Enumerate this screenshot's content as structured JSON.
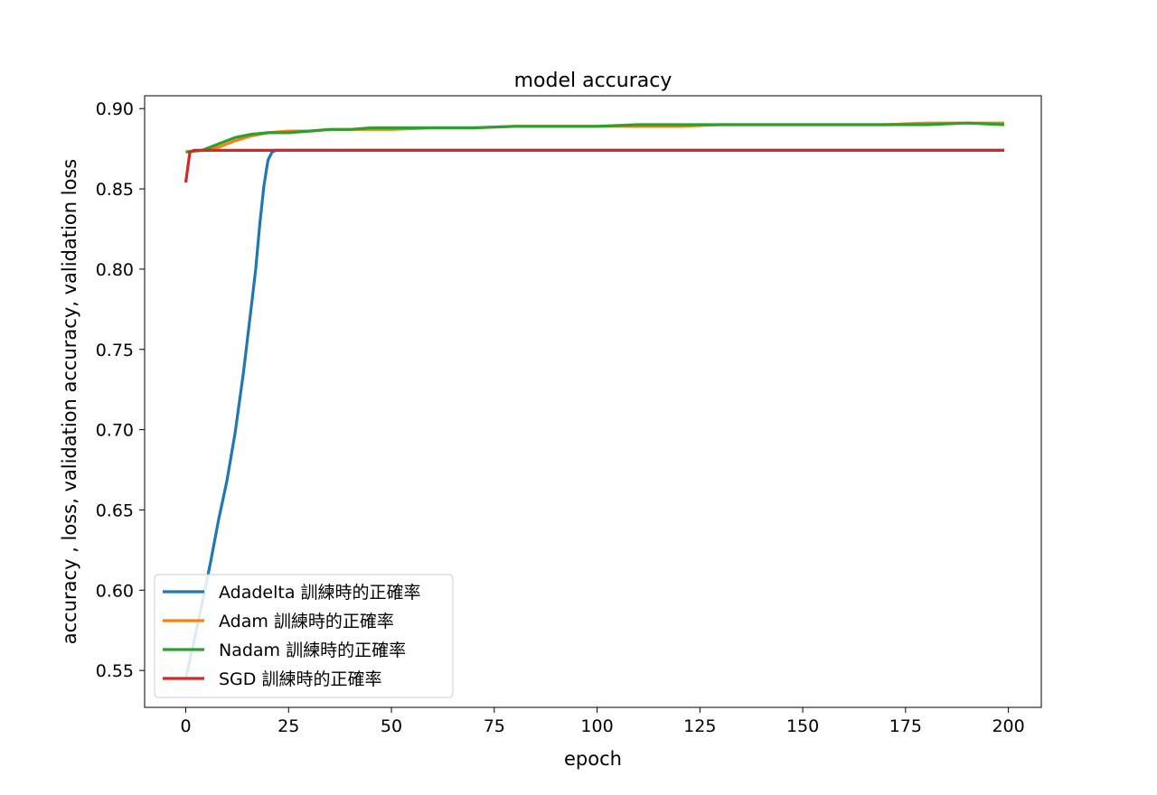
{
  "chart_data": {
    "type": "line",
    "title": "model accuracy",
    "xlabel": "epoch",
    "ylabel": "accuracy , loss, validation accuracy, validation loss",
    "xlim": [
      -10,
      208
    ],
    "ylim": [
      0.527,
      0.908
    ],
    "xticks": [
      0,
      25,
      50,
      75,
      100,
      125,
      150,
      175,
      200
    ],
    "yticks": [
      0.55,
      0.6,
      0.65,
      0.7,
      0.75,
      0.8,
      0.85,
      0.9
    ],
    "ytick_labels": [
      "0.55",
      "0.60",
      "0.65",
      "0.70",
      "0.75",
      "0.80",
      "0.85",
      "0.90"
    ],
    "grid": false,
    "legend_position": "lower-left",
    "series": [
      {
        "name": "Adadelta 訓練時的正確率",
        "color": "#1f77b4",
        "points": [
          [
            0,
            0.545
          ],
          [
            2,
            0.568
          ],
          [
            4,
            0.592
          ],
          [
            6,
            0.617
          ],
          [
            8,
            0.644
          ],
          [
            10,
            0.668
          ],
          [
            12,
            0.698
          ],
          [
            14,
            0.735
          ],
          [
            16,
            0.778
          ],
          [
            17,
            0.8
          ],
          [
            18,
            0.828
          ],
          [
            19,
            0.852
          ],
          [
            20,
            0.868
          ],
          [
            21,
            0.873
          ],
          [
            22,
            0.874
          ],
          [
            199,
            0.874
          ]
        ]
      },
      {
        "name": "Adam 訓練時的正確率",
        "color": "#ff7f0e",
        "points": [
          [
            0,
            0.873
          ],
          [
            4,
            0.874
          ],
          [
            8,
            0.876
          ],
          [
            12,
            0.88
          ],
          [
            16,
            0.883
          ],
          [
            20,
            0.885
          ],
          [
            25,
            0.886
          ],
          [
            30,
            0.886
          ],
          [
            35,
            0.887
          ],
          [
            40,
            0.887
          ],
          [
            45,
            0.887
          ],
          [
            50,
            0.887
          ],
          [
            60,
            0.888
          ],
          [
            70,
            0.888
          ],
          [
            80,
            0.889
          ],
          [
            90,
            0.889
          ],
          [
            100,
            0.889
          ],
          [
            110,
            0.889
          ],
          [
            120,
            0.889
          ],
          [
            130,
            0.89
          ],
          [
            140,
            0.89
          ],
          [
            150,
            0.89
          ],
          [
            160,
            0.89
          ],
          [
            170,
            0.89
          ],
          [
            180,
            0.891
          ],
          [
            190,
            0.891
          ],
          [
            199,
            0.891
          ]
        ]
      },
      {
        "name": "Nadam 訓練時的正確率",
        "color": "#2ca02c",
        "points": [
          [
            0,
            0.873
          ],
          [
            4,
            0.874
          ],
          [
            8,
            0.878
          ],
          [
            12,
            0.882
          ],
          [
            16,
            0.884
          ],
          [
            20,
            0.885
          ],
          [
            25,
            0.885
          ],
          [
            30,
            0.886
          ],
          [
            35,
            0.887
          ],
          [
            40,
            0.887
          ],
          [
            45,
            0.888
          ],
          [
            50,
            0.888
          ],
          [
            60,
            0.888
          ],
          [
            70,
            0.888
          ],
          [
            80,
            0.889
          ],
          [
            90,
            0.889
          ],
          [
            100,
            0.889
          ],
          [
            110,
            0.89
          ],
          [
            120,
            0.89
          ],
          [
            130,
            0.89
          ],
          [
            140,
            0.89
          ],
          [
            150,
            0.89
          ],
          [
            160,
            0.89
          ],
          [
            170,
            0.89
          ],
          [
            180,
            0.89
          ],
          [
            190,
            0.891
          ],
          [
            199,
            0.89
          ]
        ]
      },
      {
        "name": "SGD 訓練時的正確率",
        "color": "#d62728",
        "points": [
          [
            0,
            0.854
          ],
          [
            1,
            0.873
          ],
          [
            2,
            0.874
          ],
          [
            199,
            0.874
          ]
        ]
      }
    ]
  }
}
